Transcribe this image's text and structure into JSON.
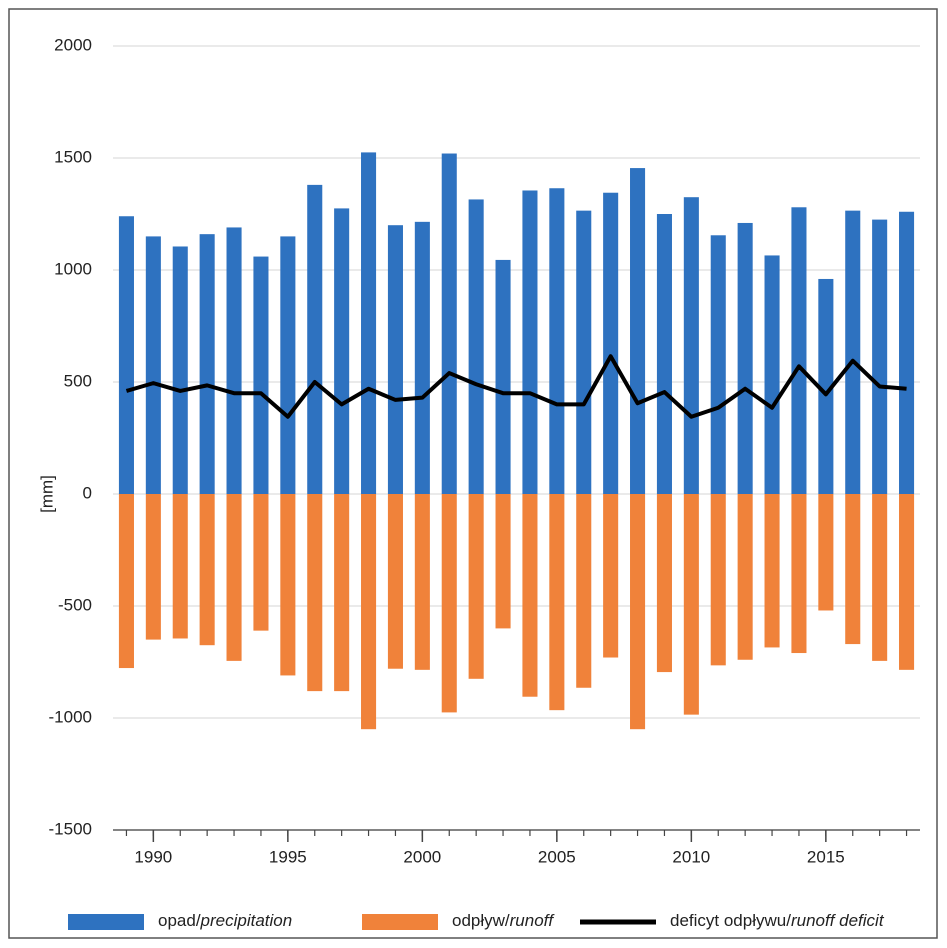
{
  "chart_data": {
    "type": "bar-line",
    "y_label": "[mm]",
    "x": [
      1989,
      1990,
      1991,
      1992,
      1993,
      1994,
      1995,
      1996,
      1997,
      1998,
      1999,
      2000,
      2001,
      2002,
      2003,
      2004,
      2005,
      2006,
      2007,
      2008,
      2009,
      2010,
      2011,
      2012,
      2013,
      2014,
      2015,
      2016,
      2017,
      2018
    ],
    "series": [
      {
        "name": "opad/precipitation",
        "kind": "bar",
        "color": "#2e72c0",
        "values": [
          1240,
          1150,
          1105,
          1160,
          1190,
          1060,
          1150,
          1380,
          1275,
          1525,
          1200,
          1215,
          1520,
          1315,
          1045,
          1355,
          1365,
          1265,
          1345,
          1455,
          1250,
          1325,
          1155,
          1210,
          1065,
          1280,
          960,
          1265,
          1225,
          1260
        ]
      },
      {
        "name": "odpływ/runoff",
        "kind": "bar",
        "color": "#f0823a",
        "values": [
          -777,
          -650,
          -645,
          -675,
          -745,
          -610,
          -810,
          -880,
          -880,
          -1050,
          -780,
          -785,
          -975,
          -825,
          -600,
          -905,
          -965,
          -865,
          -730,
          -1050,
          -795,
          -985,
          -765,
          -740,
          -685,
          -710,
          -520,
          -670,
          -745,
          -785
        ]
      },
      {
        "name": "deficyt odpływu/runoff deficit",
        "kind": "line",
        "color": "#000000",
        "values": [
          460,
          495,
          460,
          485,
          450,
          450,
          345,
          500,
          400,
          470,
          420,
          430,
          540,
          490,
          450,
          450,
          400,
          400,
          615,
          405,
          455,
          345,
          385,
          470,
          385,
          570,
          445,
          595,
          480,
          470
        ]
      }
    ],
    "xlim": [
      1988.5,
      2018.5
    ],
    "xticks": [
      1990,
      1995,
      2000,
      2005,
      2010,
      2015
    ],
    "ylim": [
      -1500,
      2000
    ],
    "yticks": [
      -1500,
      -1000,
      -500,
      0,
      500,
      1000,
      1500,
      2000
    ],
    "grid": true
  }
}
